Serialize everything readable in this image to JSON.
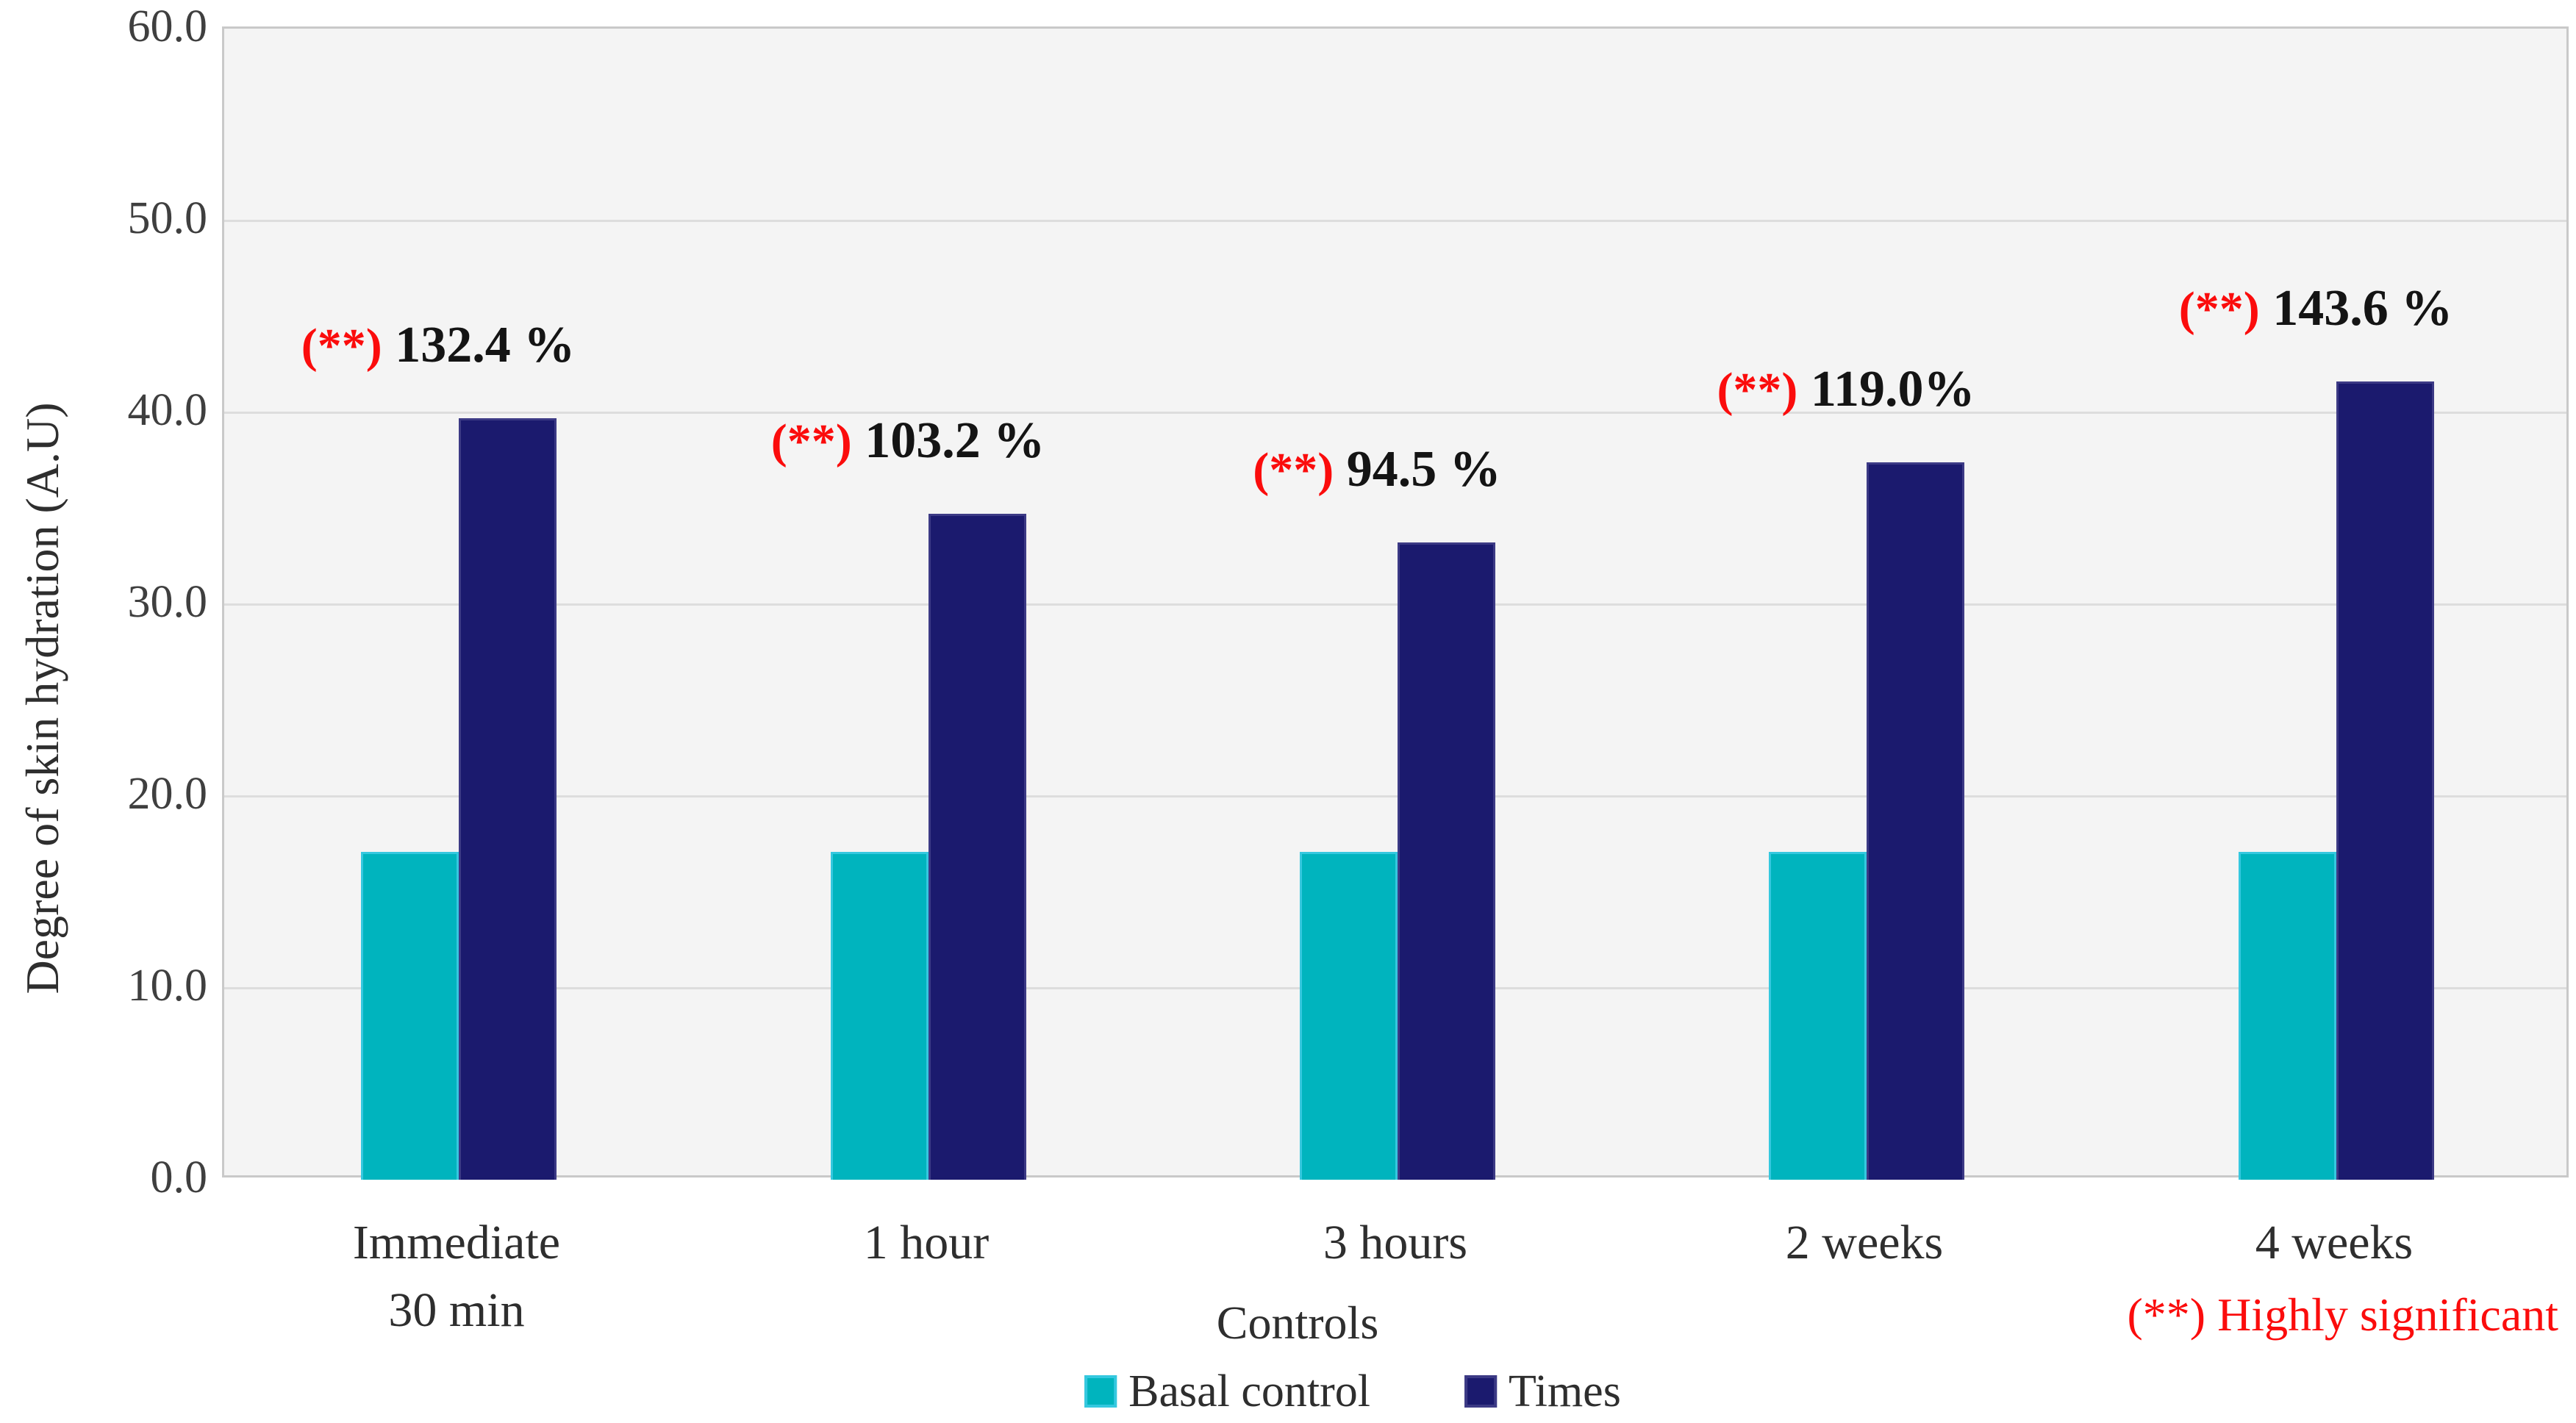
{
  "chart_data": {
    "type": "bar",
    "title": "",
    "xlabel": "Controls",
    "ylabel": "Degree of skin hydration (A.U)",
    "ylim": [
      0,
      60
    ],
    "ytick_step": 10,
    "ytick_labels": [
      "60.0",
      "50.0",
      "40.0",
      "30.0",
      "20.0",
      "10.0",
      "0.0"
    ],
    "grid": "horizontal",
    "legend_position": "bottom-center",
    "categories": [
      [
        "Immediate",
        "30 min"
      ],
      [
        "1 hour"
      ],
      [
        "3 hours"
      ],
      [
        "2 weeks"
      ],
      [
        "4 weeks"
      ]
    ],
    "series": [
      {
        "name": "Basal control",
        "color_key": "basal",
        "values": [
          17.1,
          17.1,
          17.1,
          17.1,
          17.1
        ]
      },
      {
        "name": "Times",
        "color_key": "times",
        "values": [
          39.7,
          34.7,
          33.2,
          37.4,
          41.6
        ]
      }
    ],
    "annotations": [
      {
        "stars": "(**)",
        "value": "132.4 %"
      },
      {
        "stars": "(**)",
        "value": "103.2 %"
      },
      {
        "stars": "(**)",
        "value": "94.5 %"
      },
      {
        "stars": "(**)",
        "value": "119.0%"
      },
      {
        "stars": "(**)",
        "value": "143.6 %"
      }
    ],
    "percent_increase": [
      132.4,
      103.2,
      94.5,
      119.0,
      143.6
    ],
    "note": "(**) Highly significant",
    "colors": {
      "basal": "#00B4BE",
      "basal_border": "#35C8DF",
      "times": "#1B1A6E",
      "times_border": "#3C3A85",
      "red": "#FB0C0C",
      "plot_bg": "#F4F4F4",
      "gridline": "#DDDDDD",
      "plot_border": "#C9C9C9",
      "tick_text": "#3F3F3F"
    }
  }
}
